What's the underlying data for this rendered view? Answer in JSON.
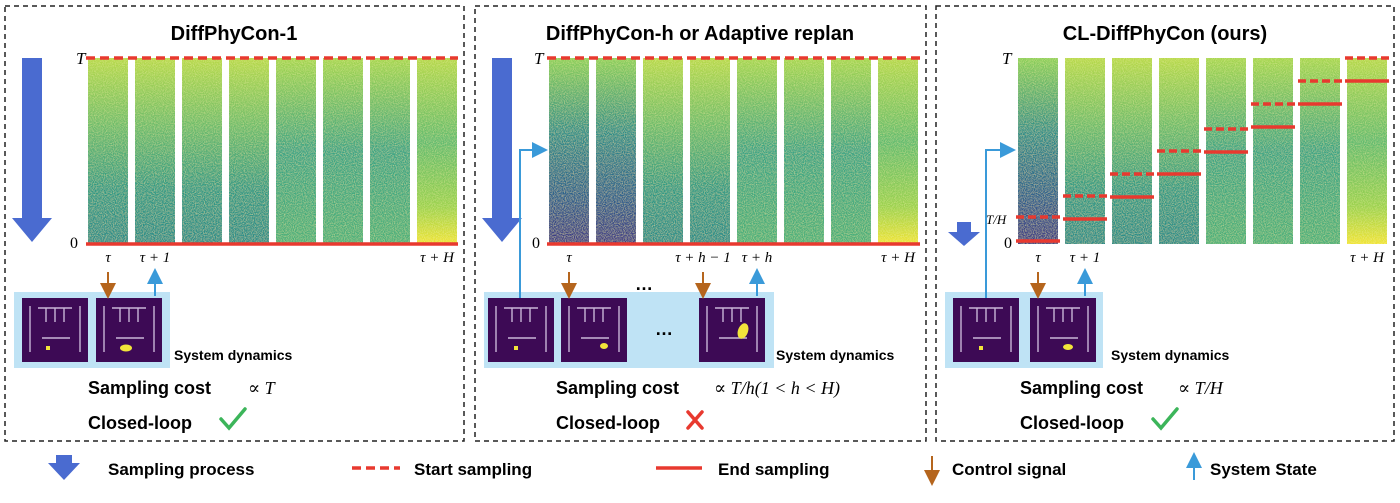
{
  "panels": [
    {
      "title": "DiffPhyCon-1",
      "axis_top": "T",
      "axis_bottom": "0",
      "ticks": [
        "τ",
        "τ + 1",
        "τ + H"
      ],
      "dynamics_label": "System dynamics",
      "cost_label": "Sampling cost",
      "cost_formula": "∝ T",
      "closed_loop_label": "Closed-loop",
      "closed_loop": true
    },
    {
      "title": "DiffPhyCon-h or Adaptive replan",
      "axis_top": "T",
      "axis_bottom": "0",
      "ticks": [
        "τ",
        "τ + h − 1",
        "τ + h",
        "τ + H"
      ],
      "ellipsis": "…",
      "dynamics_label": "System dynamics",
      "cost_label": "Sampling cost",
      "cost_formula": "∝ T/h(1 < h < H)",
      "closed_loop_label": "Closed-loop",
      "closed_loop": false
    },
    {
      "title": "CL-DiffPhyCon (ours)",
      "axis_top": "T",
      "axis_mid": "T/H",
      "axis_bottom": "0",
      "ticks": [
        "τ",
        "τ + 1",
        "τ + H"
      ],
      "dynamics_label": "System dynamics",
      "cost_label": "Sampling cost",
      "cost_formula": "∝ T/H",
      "closed_loop_label": "Closed-loop",
      "closed_loop": true
    }
  ],
  "legend": [
    {
      "label": "Sampling process",
      "icon": "blue-down-arrow-icon"
    },
    {
      "label": "Start sampling",
      "icon": "red-dashed-line-icon"
    },
    {
      "label": "End sampling",
      "icon": "red-solid-line-icon"
    },
    {
      "label": "Control signal",
      "icon": "brown-down-arrow-icon"
    },
    {
      "label": "System State",
      "icon": "blue-up-arrow-icon"
    }
  ],
  "colors": {
    "sampling_arrow": "#4a6bd0",
    "sampling_line": "#e8392f",
    "control_arrow": "#b5651d",
    "state_arrow": "#3a9ad9",
    "dynamics_bg": "#bfe3f5",
    "check": "#3cb55a",
    "cross": "#e8392f"
  }
}
